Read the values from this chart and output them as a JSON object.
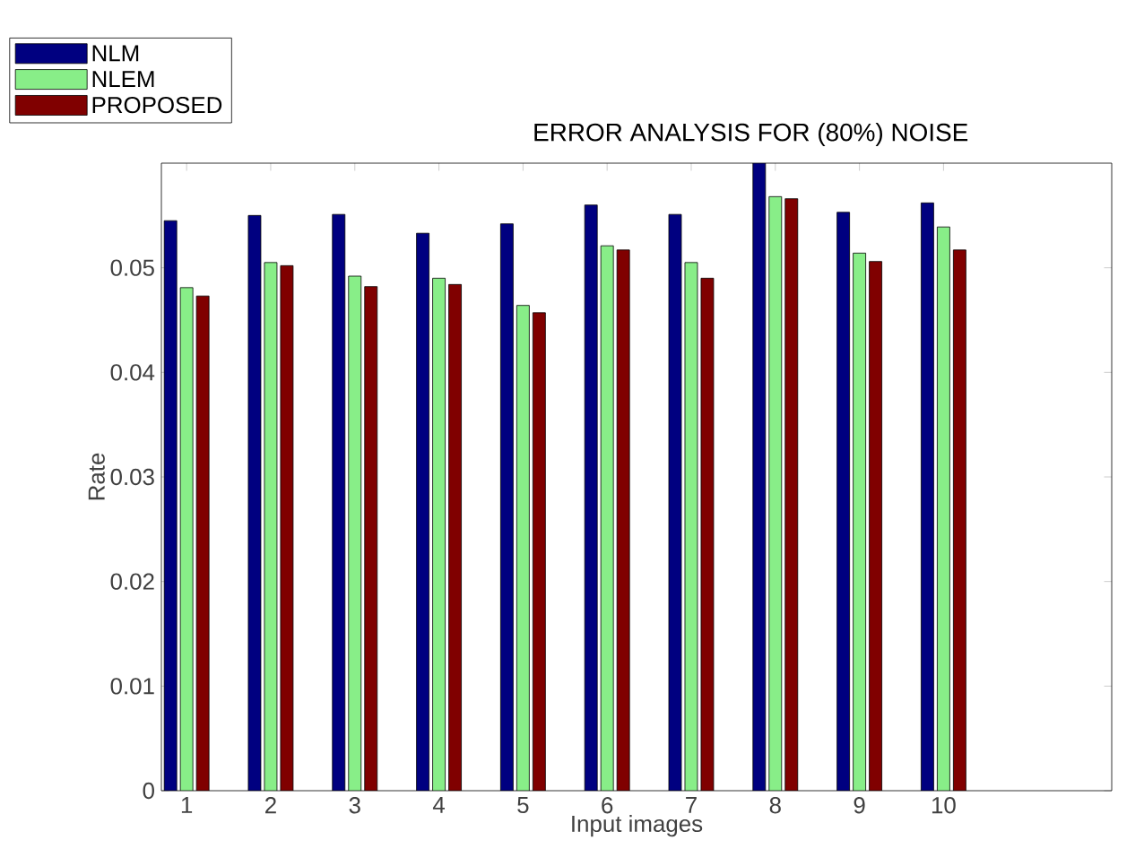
{
  "chart_data": {
    "type": "bar",
    "title": "ERROR ANALYSIS FOR (80%) NOISE",
    "xlabel": "Input images",
    "ylabel": "Rate",
    "categories": [
      "1",
      "2",
      "3",
      "4",
      "5",
      "6",
      "7",
      "8",
      "9",
      "10"
    ],
    "series": [
      {
        "name": "NLM",
        "color": "#000080",
        "values": [
          0.0545,
          0.055,
          0.0551,
          0.0533,
          0.0542,
          0.056,
          0.0551,
          0.06,
          0.0553,
          0.0562
        ]
      },
      {
        "name": "NLEM",
        "color": "#88ee88",
        "values": [
          0.0481,
          0.0505,
          0.0492,
          0.049,
          0.0464,
          0.0521,
          0.0505,
          0.0568,
          0.0514,
          0.0539
        ]
      },
      {
        "name": "PROPOSED",
        "color": "#800000",
        "values": [
          0.0473,
          0.0502,
          0.0482,
          0.0484,
          0.0457,
          0.0517,
          0.049,
          0.0566,
          0.0506,
          0.0517
        ]
      }
    ],
    "ylim": [
      0,
      0.06
    ],
    "yticks": [
      0,
      0.01,
      0.02,
      0.03,
      0.04,
      0.05
    ],
    "legend": "top left",
    "grid": false
  }
}
